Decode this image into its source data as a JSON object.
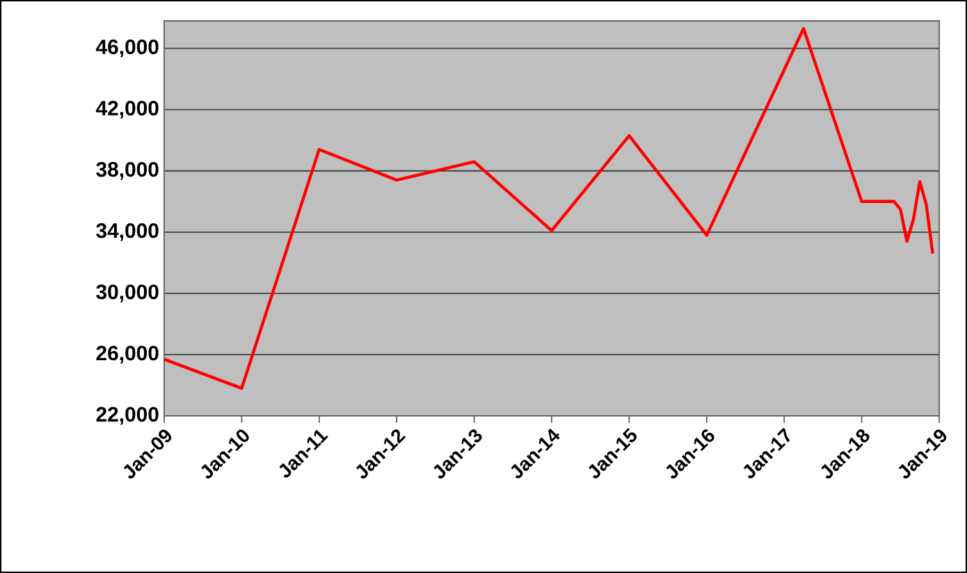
{
  "chart_data": {
    "type": "line",
    "x": [
      "2009-01",
      "2010-01",
      "2011-01",
      "2012-01",
      "2013-01",
      "2014-01",
      "2015-01",
      "2016-01",
      "2017-04",
      "2018-01",
      "2018-06",
      "2018-07",
      "2018-08",
      "2018-09",
      "2018-10",
      "2018-11",
      "2018-12"
    ],
    "series": [
      {
        "color": "#ff0000",
        "values": [
          25700,
          23800,
          39400,
          37400,
          38600,
          34100,
          40300,
          33800,
          47300,
          36000,
          36000,
          35500,
          33400,
          34800,
          37300,
          35800,
          32600
        ]
      }
    ],
    "xlim": [
      "2009-01",
      "2019-01"
    ],
    "xticks": [
      {
        "value": "2009-01",
        "label": "Jan-09"
      },
      {
        "value": "2010-01",
        "label": "Jan-10"
      },
      {
        "value": "2011-01",
        "label": "Jan-11"
      },
      {
        "value": "2012-01",
        "label": "Jan-12"
      },
      {
        "value": "2013-01",
        "label": "Jan-13"
      },
      {
        "value": "2014-01",
        "label": "Jan-14"
      },
      {
        "value": "2015-01",
        "label": "Jan-15"
      },
      {
        "value": "2016-01",
        "label": "Jan-16"
      },
      {
        "value": "2017-01",
        "label": "Jan-17"
      },
      {
        "value": "2018-01",
        "label": "Jan-18"
      },
      {
        "value": "2019-01",
        "label": "Jan-19"
      }
    ],
    "ylim": [
      22000,
      47800
    ],
    "yticks": [
      {
        "value": 22000,
        "label": "22,000"
      },
      {
        "value": 26000,
        "label": "26,000"
      },
      {
        "value": 30000,
        "label": "30,000"
      },
      {
        "value": 34000,
        "label": "34,000"
      },
      {
        "value": 38000,
        "label": "38,000"
      },
      {
        "value": 42000,
        "label": "42,000"
      },
      {
        "value": 46000,
        "label": "46,000"
      }
    ],
    "grid": "y",
    "marker": "none",
    "line_style": "solid"
  }
}
